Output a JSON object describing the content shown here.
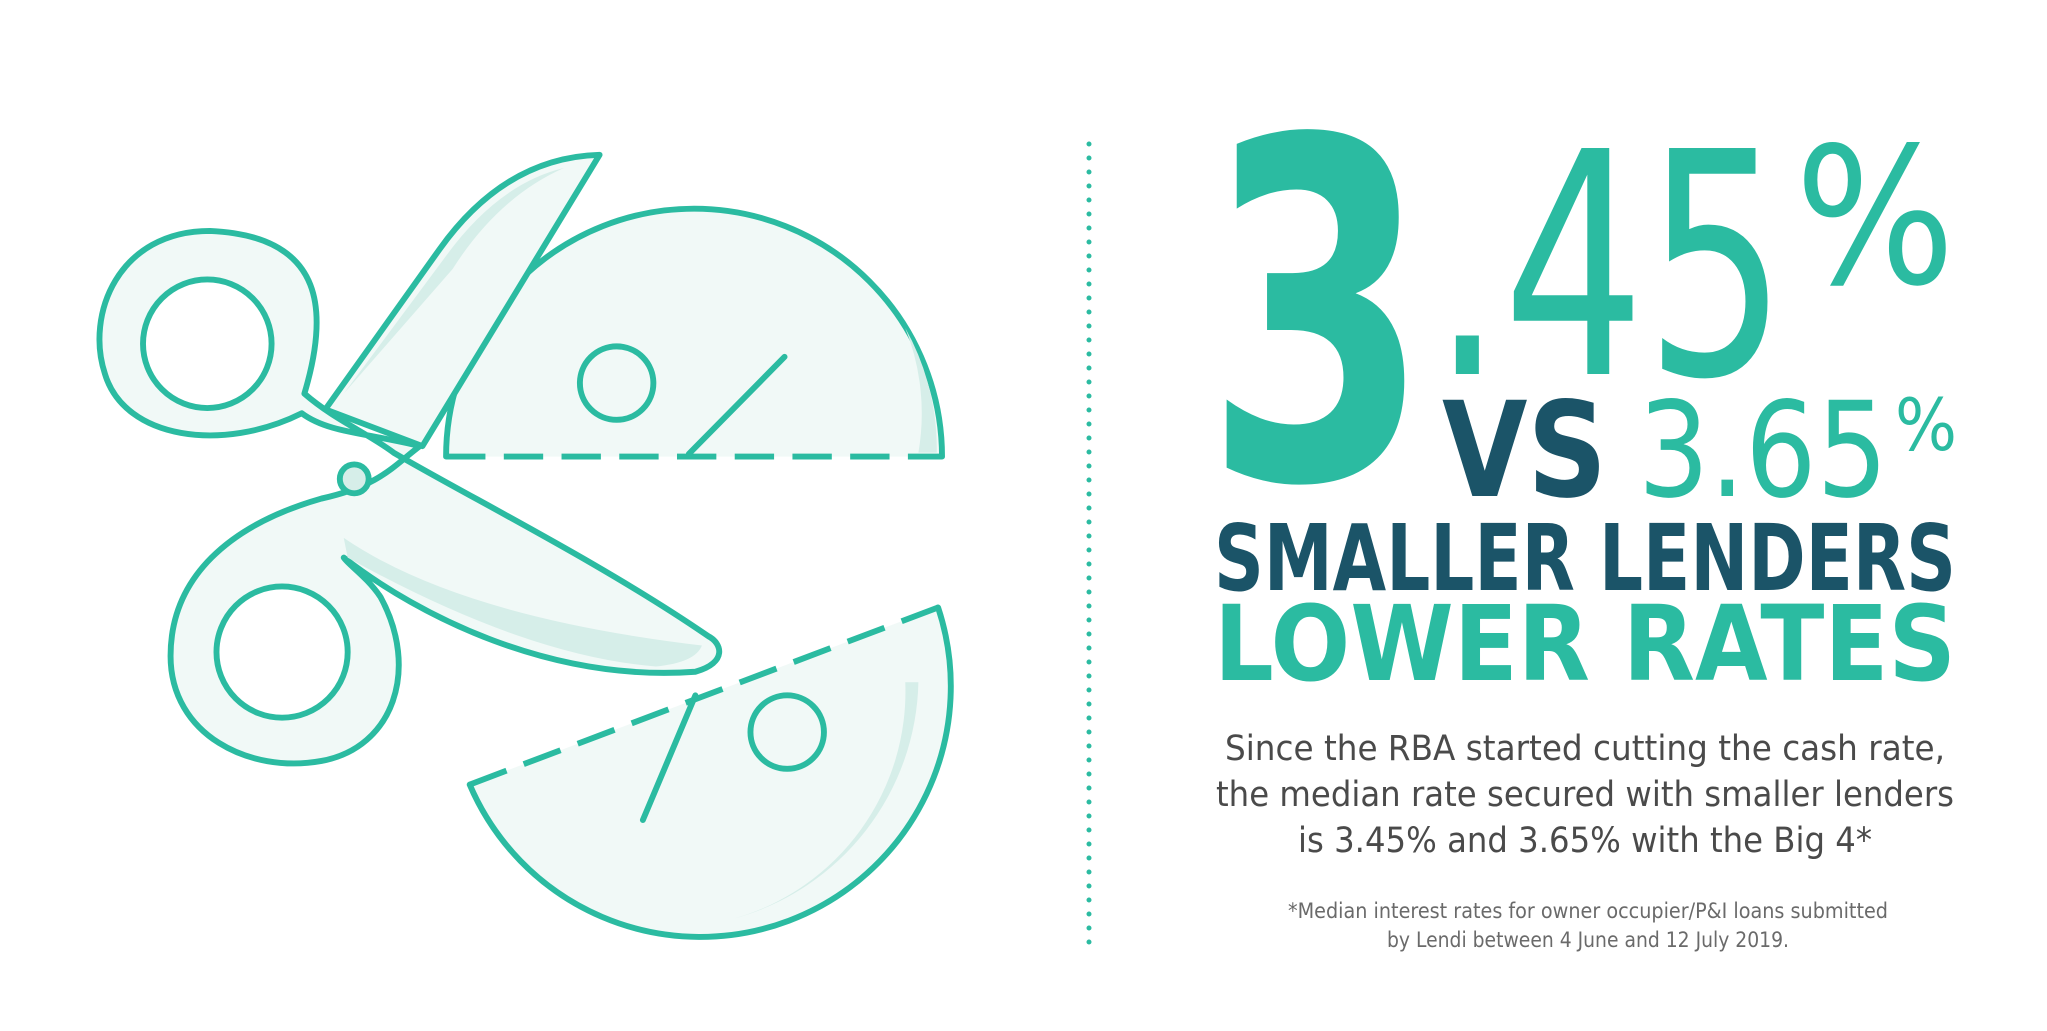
{
  "headline": {
    "rate_integer": "3",
    "rate_fraction": ".45",
    "rate_unit": "%",
    "versus": "VS",
    "compare_rate": "3.65",
    "compare_unit": "%",
    "line_1": "SMALLER LENDERS",
    "line_2": "LOWER RATES"
  },
  "body": [
    "Since the RBA started cutting the cash rate,",
    "the median rate secured with smaller lenders",
    "is 3.45% and 3.65% with the Big 4*"
  ],
  "footnote": [
    "*Median interest rates for owner occupier/P&I loans submitted",
    "by Lendi between 4 June and 12 July 2019."
  ]
}
